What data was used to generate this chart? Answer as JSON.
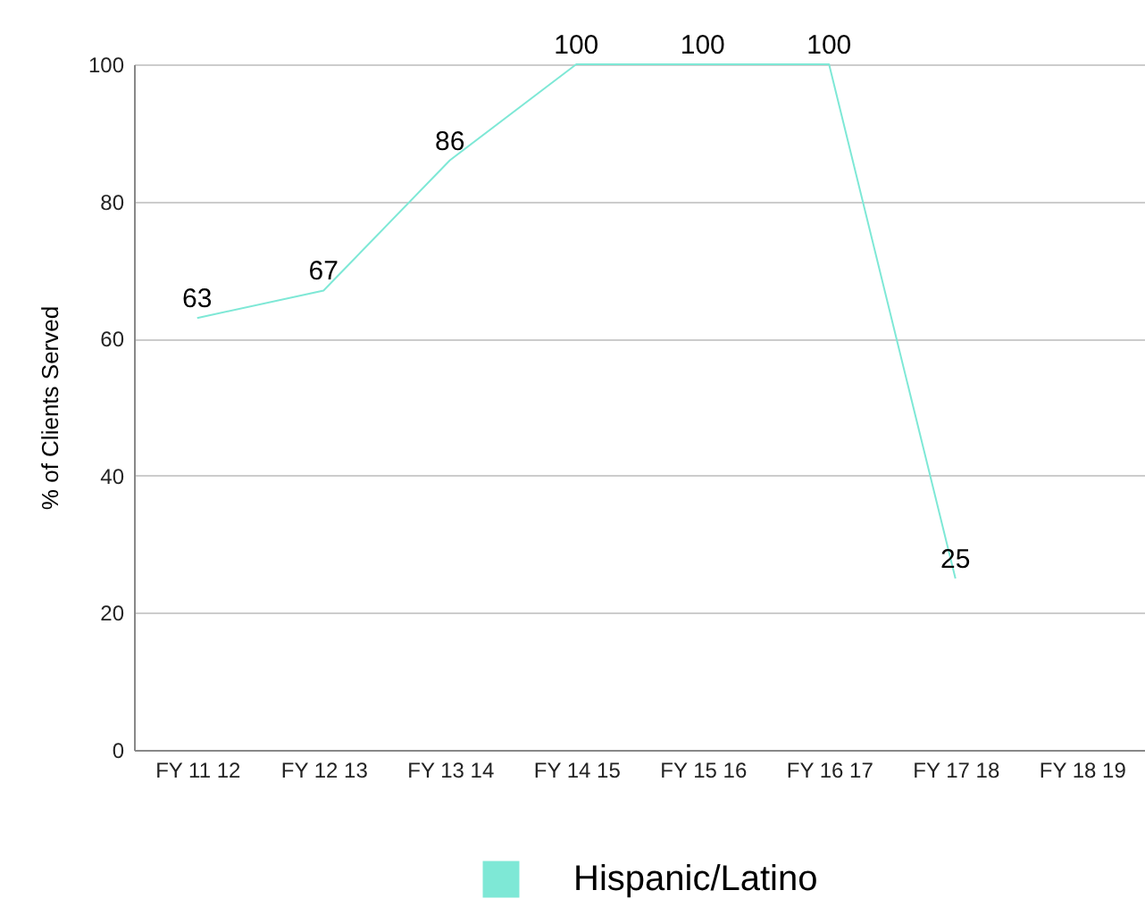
{
  "chart_data": {
    "type": "line",
    "ylabel": "% of Clients Served",
    "categories": [
      "FY 11 12",
      "FY 12 13",
      "FY 13 14",
      "FY 14 15",
      "FY 15 16",
      "FY 16 17",
      "FY 17 18",
      "FY 18 19"
    ],
    "series": [
      {
        "name": "Hispanic/Latino",
        "color": "#7ee8d6",
        "values": [
          63,
          67,
          86,
          100,
          100,
          100,
          25,
          null
        ]
      }
    ],
    "ylim": [
      0,
      100
    ],
    "yticks": [
      0,
      20,
      40,
      60,
      80,
      100
    ],
    "grid": "y",
    "legend": "bottom",
    "data_labels": true,
    "marker": "none"
  }
}
